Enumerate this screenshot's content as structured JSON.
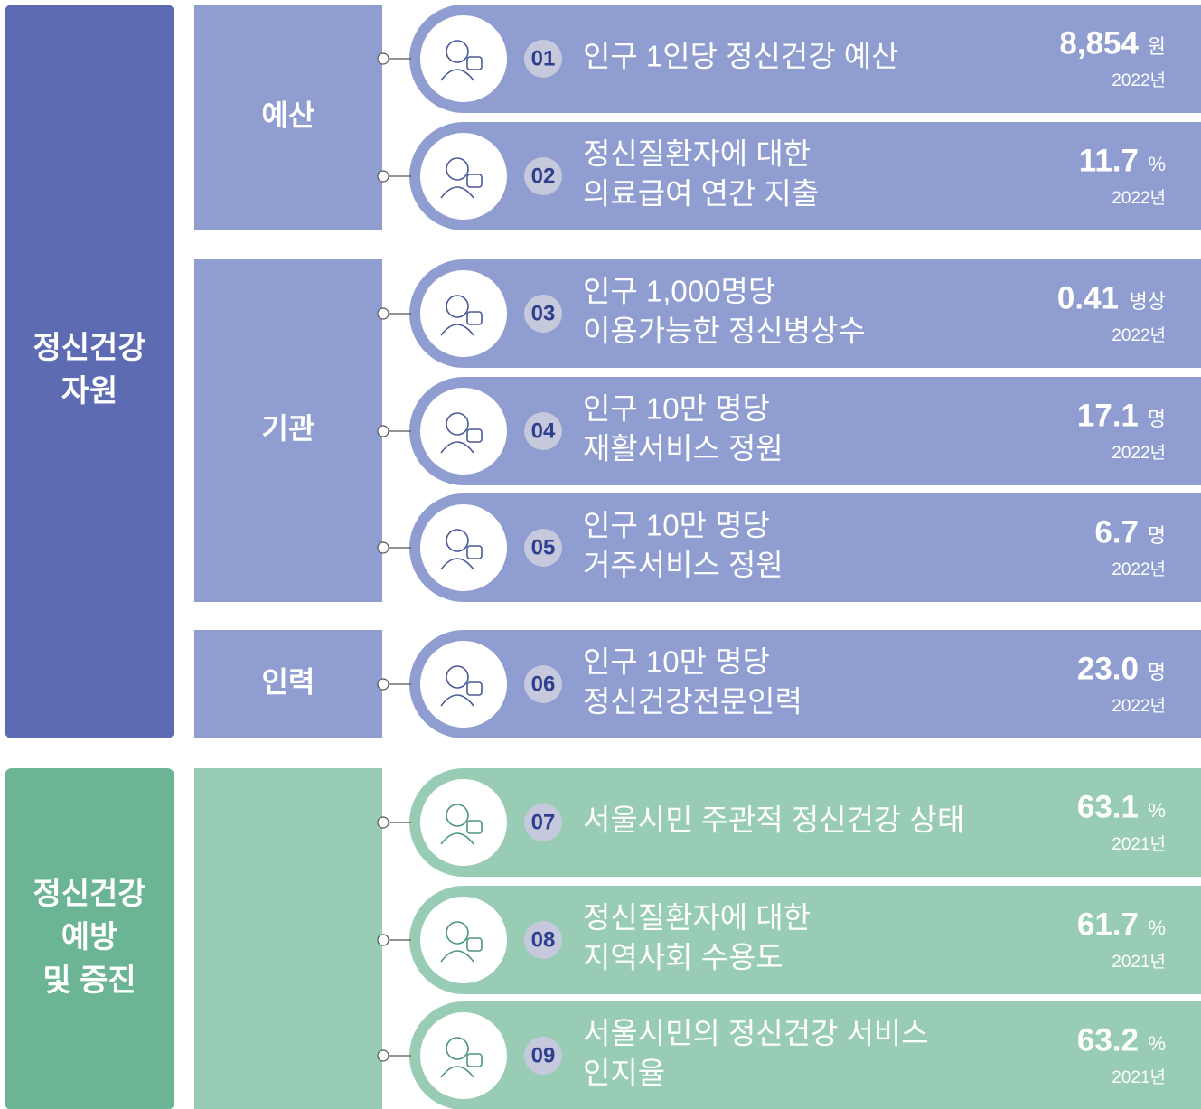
{
  "groups": [
    {
      "title": [
        "정신건강",
        "자원"
      ],
      "subgroups": [
        {
          "label": "예산",
          "items": [
            {
              "number": "01",
              "label": [
                "인구 1인당 정신건강 예산"
              ],
              "value": "8,854",
              "unit": "원",
              "year": "2022년"
            },
            {
              "number": "02",
              "label": [
                "정신질환자에 대한",
                "의료급여 연간 지출"
              ],
              "value": "11.7",
              "unit": "%",
              "year": "2022년"
            }
          ]
        },
        {
          "label": "기관",
          "items": [
            {
              "number": "03",
              "label": [
                "인구 1,000명당",
                "이용가능한 정신병상수"
              ],
              "value": "0.41",
              "unit": "병상",
              "year": "2022년"
            },
            {
              "number": "04",
              "label": [
                "인구 10만 명당",
                "재활서비스 정원"
              ],
              "value": "17.1",
              "unit": "명",
              "year": "2022년"
            },
            {
              "number": "05",
              "label": [
                "인구 10만 명당",
                "거주서비스 정원"
              ],
              "value": "6.7",
              "unit": "명",
              "year": "2022년"
            }
          ]
        },
        {
          "label": "인력",
          "items": [
            {
              "number": "06",
              "label": [
                "인구 10만 명당",
                "정신건강전문인력"
              ],
              "value": "23.0",
              "unit": "명",
              "year": "2022년"
            }
          ]
        }
      ]
    },
    {
      "title": [
        "정신건강",
        "예방",
        "및 증진"
      ],
      "subgroups": [
        {
          "items": [
            {
              "number": "07",
              "label": [
                "서울시민 주관적 정신건강 상태"
              ],
              "value": "63.1",
              "unit": "%",
              "year": "2021년"
            },
            {
              "number": "08",
              "label": [
                "정신질환자에 대한",
                "지역사회 수용도"
              ],
              "value": "61.7",
              "unit": "%",
              "year": "2021년"
            },
            {
              "number": "09",
              "label": [
                "서울시민의 정신건강 서비스",
                "인지율"
              ],
              "value": "63.2",
              "unit": "%",
              "year": "2021년"
            }
          ]
        }
      ]
    }
  ]
}
